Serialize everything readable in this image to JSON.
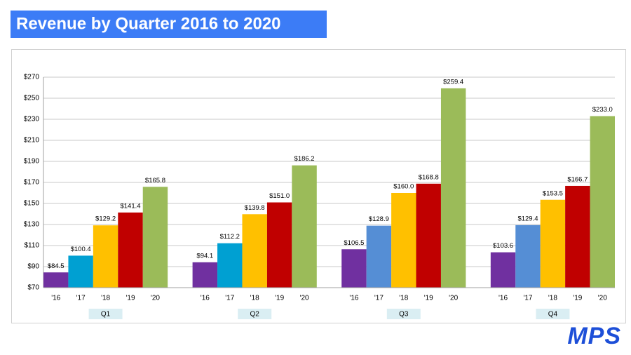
{
  "chart_data": {
    "type": "bar",
    "title": "Revenue by Quarter 2016 to 2020",
    "categories": [
      "Q1",
      "Q2",
      "Q3",
      "Q4"
    ],
    "series": [
      {
        "name": "'16",
        "color": "#7030a0",
        "values": [
          84.5,
          94.1,
          106.5,
          103.6
        ],
        "value_labels": [
          "$84.5",
          "$94.1",
          "$106.5",
          "$103.6"
        ]
      },
      {
        "name": "'17",
        "colors": [
          "#00a0d2",
          "#00a0d2",
          "#558ed5",
          "#558ed5"
        ],
        "values": [
          100.4,
          112.2,
          128.9,
          129.4
        ],
        "value_labels": [
          "$100.4",
          "$112.2",
          "$128.9",
          "$129.4"
        ]
      },
      {
        "name": "'18",
        "color": "#ffc000",
        "values": [
          129.2,
          139.8,
          160.0,
          153.5
        ],
        "value_labels": [
          "$129.2",
          "$139.8",
          "$160.0",
          "$153.5"
        ]
      },
      {
        "name": "'19",
        "color": "#c00000",
        "values": [
          141.4,
          151.0,
          168.8,
          166.7
        ],
        "value_labels": [
          "$141.4",
          "$151.0",
          "$168.8",
          "$166.7"
        ]
      },
      {
        "name": "'20",
        "color": "#9bbb59",
        "values": [
          165.8,
          186.2,
          259.4,
          233.0
        ],
        "value_labels": [
          "$165.8",
          "$186.2",
          "$259.4",
          "$233.0"
        ]
      }
    ],
    "ylim": [
      70,
      270
    ],
    "yticks": [
      {
        "value": 70,
        "label": "$70"
      },
      {
        "value": 90,
        "label": "$90"
      },
      {
        "value": 110,
        "label": "$110"
      },
      {
        "value": 130,
        "label": "$130"
      },
      {
        "value": 150,
        "label": "$150"
      },
      {
        "value": 170,
        "label": "$170"
      },
      {
        "value": 190,
        "label": "$190"
      },
      {
        "value": 210,
        "label": "$210"
      },
      {
        "value": 230,
        "label": "$230"
      },
      {
        "value": 250,
        "label": "$250"
      },
      {
        "value": 270,
        "label": "$270"
      }
    ],
    "grid": true
  },
  "logo": "MPS"
}
